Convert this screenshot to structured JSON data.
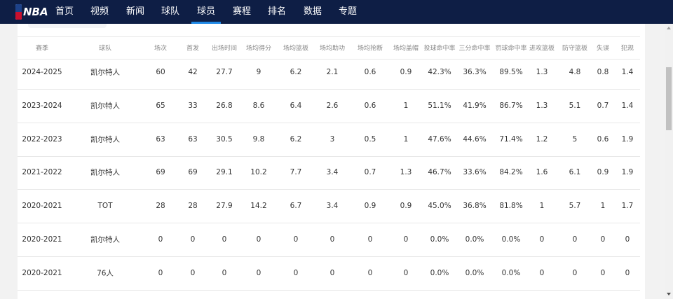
{
  "header": {
    "logo": "NBA",
    "nav": [
      "首页",
      "视频",
      "新闻",
      "球队",
      "球员",
      "赛程",
      "排名",
      "数据",
      "专题"
    ],
    "active": 4
  },
  "table": {
    "columns": [
      "赛季",
      "球队",
      "场次",
      "首发",
      "出场时间",
      "场均得分",
      "场均篮板",
      "场均助功",
      "场均抢断",
      "场均盖帽",
      "投球命中率",
      "三分命中率",
      "罚球命中率",
      "进攻篮板",
      "防守篮板",
      "失误",
      "犯规"
    ],
    "rows": [
      [
        "2024-2025",
        "凯尔特人",
        "60",
        "42",
        "27.7",
        "9",
        "6.2",
        "2.1",
        "0.6",
        "0.9",
        "42.3%",
        "36.3%",
        "89.5%",
        "1.3",
        "4.8",
        "0.8",
        "1.4"
      ],
      [
        "2023-2024",
        "凯尔特人",
        "65",
        "33",
        "26.8",
        "8.6",
        "6.4",
        "2.6",
        "0.6",
        "1",
        "51.1%",
        "41.9%",
        "86.7%",
        "1.3",
        "5.1",
        "0.7",
        "1.4"
      ],
      [
        "2022-2023",
        "凯尔特人",
        "63",
        "63",
        "30.5",
        "9.8",
        "6.2",
        "3",
        "0.5",
        "1",
        "47.6%",
        "44.6%",
        "71.4%",
        "1.2",
        "5",
        "0.6",
        "1.9"
      ],
      [
        "2021-2022",
        "凯尔特人",
        "69",
        "69",
        "29.1",
        "10.2",
        "7.7",
        "3.4",
        "0.7",
        "1.3",
        "46.7%",
        "33.6%",
        "84.2%",
        "1.6",
        "6.1",
        "0.9",
        "1.9"
      ],
      [
        "2020-2021",
        "TOT",
        "28",
        "28",
        "27.9",
        "14.2",
        "6.7",
        "3.4",
        "0.9",
        "0.9",
        "45.0%",
        "36.8%",
        "81.8%",
        "1",
        "5.7",
        "1",
        "1.7"
      ],
      [
        "2020-2021",
        "凯尔特人",
        "0",
        "0",
        "0",
        "0",
        "0",
        "0",
        "0",
        "0",
        "0.0%",
        "0.0%",
        "0.0%",
        "0",
        "0",
        "0",
        "0"
      ],
      [
        "2020-2021",
        "76人",
        "0",
        "0",
        "0",
        "0",
        "0",
        "0",
        "0",
        "0",
        "0.0%",
        "0.0%",
        "0.0%",
        "0",
        "0",
        "0",
        "0"
      ]
    ]
  }
}
